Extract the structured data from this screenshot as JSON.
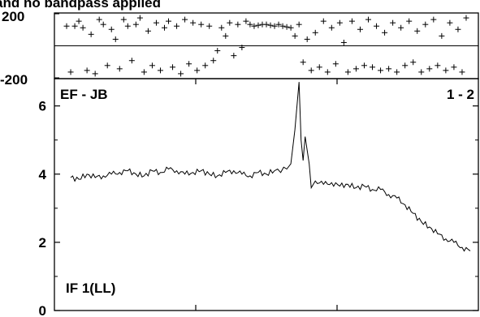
{
  "chart_data": [
    {
      "type": "scatter",
      "title": "and no bandpass applied",
      "ylim": [
        -200,
        200
      ],
      "yticks": [
        "200",
        "-200"
      ],
      "reference_line_y": 0,
      "grid": false,
      "points": [
        [
          0.01,
          120
        ],
        [
          0.02,
          -160
        ],
        [
          0.03,
          120
        ],
        [
          0.04,
          150
        ],
        [
          0.05,
          110
        ],
        [
          0.06,
          -150
        ],
        [
          0.07,
          70
        ],
        [
          0.08,
          -170
        ],
        [
          0.09,
          160
        ],
        [
          0.1,
          130
        ],
        [
          0.11,
          -120
        ],
        [
          0.12,
          100
        ],
        [
          0.13,
          40
        ],
        [
          0.14,
          -140
        ],
        [
          0.15,
          160
        ],
        [
          0.16,
          120
        ],
        [
          0.17,
          -90
        ],
        [
          0.18,
          130
        ],
        [
          0.19,
          170
        ],
        [
          0.2,
          -160
        ],
        [
          0.21,
          90
        ],
        [
          0.22,
          -120
        ],
        [
          0.23,
          140
        ],
        [
          0.24,
          -150
        ],
        [
          0.25,
          110
        ],
        [
          0.26,
          150
        ],
        [
          0.27,
          -130
        ],
        [
          0.28,
          120
        ],
        [
          0.29,
          -170
        ],
        [
          0.3,
          160
        ],
        [
          0.31,
          -110
        ],
        [
          0.32,
          140
        ],
        [
          0.33,
          -150
        ],
        [
          0.34,
          130
        ],
        [
          0.35,
          -120
        ],
        [
          0.36,
          120
        ],
        [
          0.37,
          -90
        ],
        [
          0.38,
          -30
        ],
        [
          0.39,
          110
        ],
        [
          0.4,
          60
        ],
        [
          0.41,
          140
        ],
        [
          0.42,
          -60
        ],
        [
          0.43,
          130
        ],
        [
          0.44,
          -10
        ],
        [
          0.45,
          150
        ],
        [
          0.46,
          130
        ],
        [
          0.47,
          120
        ],
        [
          0.48,
          125
        ],
        [
          0.49,
          130
        ],
        [
          0.5,
          130
        ],
        [
          0.51,
          125
        ],
        [
          0.52,
          120
        ],
        [
          0.53,
          130
        ],
        [
          0.54,
          120
        ],
        [
          0.55,
          115
        ],
        [
          0.56,
          110
        ],
        [
          0.57,
          60
        ],
        [
          0.58,
          130
        ],
        [
          0.59,
          -100
        ],
        [
          0.6,
          40
        ],
        [
          0.61,
          -150
        ],
        [
          0.62,
          80
        ],
        [
          0.63,
          -130
        ],
        [
          0.64,
          150
        ],
        [
          0.65,
          -160
        ],
        [
          0.66,
          110
        ],
        [
          0.67,
          -110
        ],
        [
          0.68,
          140
        ],
        [
          0.69,
          20
        ],
        [
          0.7,
          -160
        ],
        [
          0.71,
          150
        ],
        [
          0.72,
          -140
        ],
        [
          0.73,
          100
        ],
        [
          0.74,
          -120
        ],
        [
          0.75,
          160
        ],
        [
          0.76,
          -130
        ],
        [
          0.77,
          120
        ],
        [
          0.78,
          -150
        ],
        [
          0.79,
          80
        ],
        [
          0.8,
          -140
        ],
        [
          0.81,
          140
        ],
        [
          0.82,
          -160
        ],
        [
          0.83,
          110
        ],
        [
          0.84,
          -120
        ],
        [
          0.85,
          150
        ],
        [
          0.86,
          -100
        ],
        [
          0.87,
          90
        ],
        [
          0.88,
          -160
        ],
        [
          0.89,
          130
        ],
        [
          0.9,
          -140
        ],
        [
          0.91,
          160
        ],
        [
          0.92,
          -120
        ],
        [
          0.93,
          60
        ],
        [
          0.94,
          -150
        ],
        [
          0.95,
          140
        ],
        [
          0.96,
          -130
        ],
        [
          0.97,
          100
        ],
        [
          0.98,
          -160
        ],
        [
          0.99,
          170
        ]
      ]
    },
    {
      "type": "line",
      "labels": {
        "top_left": "EF - JB",
        "top_right": "1 - 2",
        "bottom_left": "IF 1(LL)"
      },
      "ylim": [
        0,
        6.8
      ],
      "yticks": [
        "0",
        "2",
        "4",
        "6"
      ],
      "ytick_values": [
        0,
        2,
        4,
        6
      ],
      "yminor_values": [
        1,
        3,
        5
      ],
      "x_divisions": 3,
      "grid": false,
      "series": [
        {
          "x": [
            0.02,
            0.04,
            0.06,
            0.08,
            0.1,
            0.12,
            0.14,
            0.16,
            0.18,
            0.2,
            0.22,
            0.24,
            0.26,
            0.28,
            0.3,
            0.32,
            0.34,
            0.36,
            0.38,
            0.4,
            0.42,
            0.44,
            0.46,
            0.48,
            0.5,
            0.52,
            0.55,
            0.56,
            0.57,
            0.58,
            0.585,
            0.59,
            0.595,
            0.6,
            0.605,
            0.61,
            0.62,
            0.64,
            0.66,
            0.68,
            0.7,
            0.72,
            0.74,
            0.76,
            0.78,
            0.8,
            0.82,
            0.84,
            0.86,
            0.88,
            0.9,
            0.92,
            0.94,
            0.96,
            0.98,
            1.0
          ],
          "y": [
            3.9,
            3.85,
            4.0,
            3.9,
            3.95,
            4.0,
            4.05,
            4.1,
            4.0,
            3.95,
            4.1,
            4.05,
            4.15,
            4.1,
            4.0,
            4.05,
            4.1,
            4.0,
            3.95,
            4.05,
            4.1,
            4.0,
            3.95,
            4.05,
            4.0,
            4.1,
            4.15,
            4.3,
            5.3,
            6.7,
            5.0,
            4.4,
            5.1,
            4.7,
            4.3,
            3.6,
            3.8,
            3.7,
            3.75,
            3.65,
            3.7,
            3.6,
            3.65,
            3.55,
            3.55,
            3.4,
            3.3,
            3.1,
            2.85,
            2.6,
            2.45,
            2.25,
            2.1,
            2.0,
            1.85,
            1.75
          ]
        }
      ]
    }
  ]
}
